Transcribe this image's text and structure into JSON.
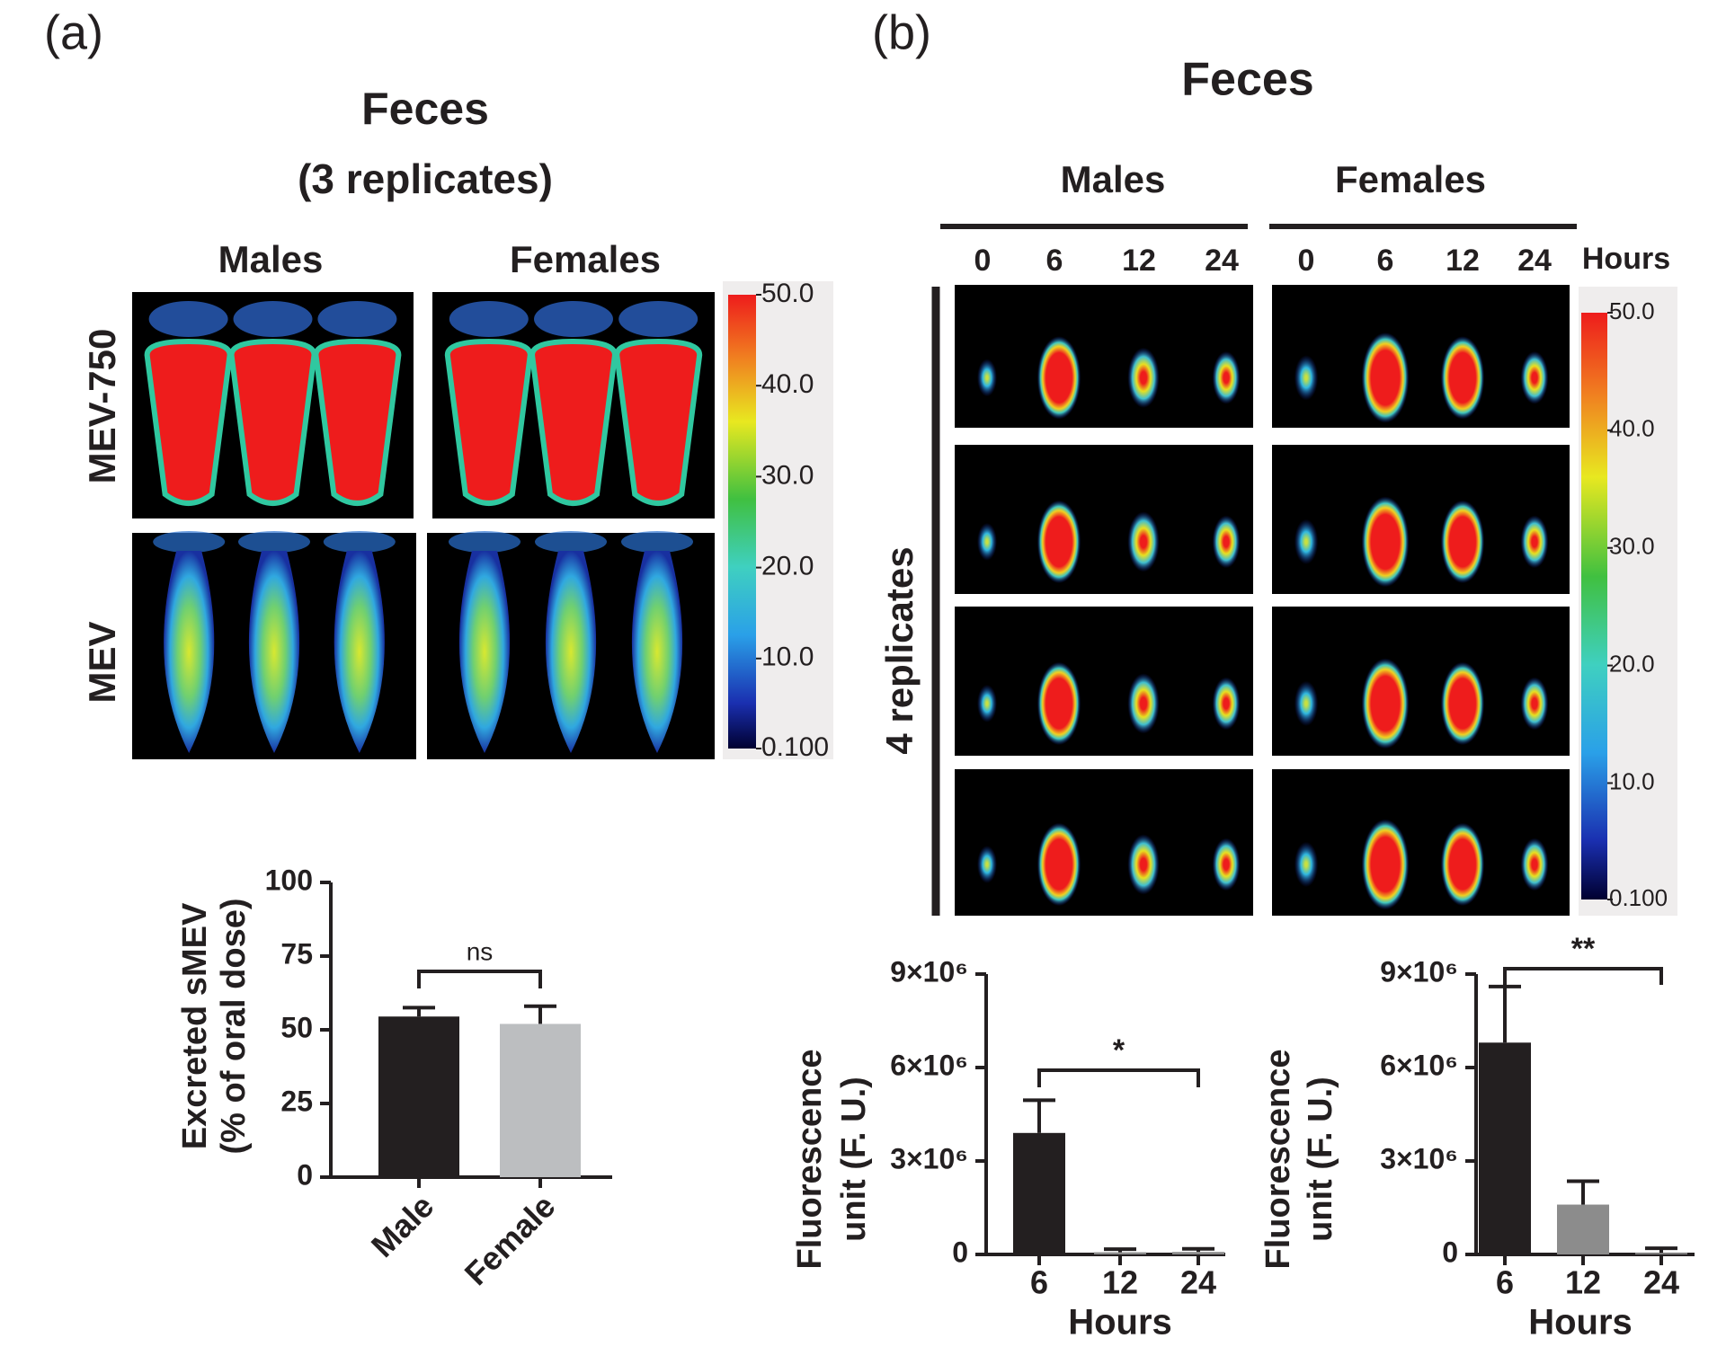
{
  "panels": {
    "a": {
      "label": "(a)",
      "title": "Feces",
      "subtitle": "(3 replicates)",
      "columns": [
        "Males",
        "Females"
      ],
      "rows": [
        "MEV-750",
        "MEV"
      ],
      "colorbar": {
        "range": [
          0.1,
          50
        ],
        "ticks": [
          {
            "value": 50,
            "label": "50.0"
          },
          {
            "value": 40,
            "label": "40.0"
          },
          {
            "value": 30,
            "label": "30.0"
          },
          {
            "value": 20,
            "label": "20.0"
          },
          {
            "value": 10,
            "label": "10.0"
          },
          {
            "value": 0.1,
            "label": "0.100"
          }
        ]
      }
    },
    "b": {
      "label": "(b)",
      "title": "Feces",
      "groups": [
        {
          "name": "Males",
          "hours": [
            "0",
            "6",
            "12",
            "24"
          ]
        },
        {
          "name": "Females",
          "hours": [
            "0",
            "6",
            "12",
            "24"
          ]
        }
      ],
      "hours_label": "Hours",
      "replicates_label": "4 replicates",
      "colorbar": {
        "range": [
          0.1,
          50
        ],
        "ticks": [
          {
            "value": 50,
            "label": "50.0"
          },
          {
            "value": 40,
            "label": "40.0"
          },
          {
            "value": 30,
            "label": "30.0"
          },
          {
            "value": 20,
            "label": "20.0"
          },
          {
            "value": 10,
            "label": "10.0"
          },
          {
            "value": 0.1,
            "label": "0.100"
          }
        ]
      }
    }
  },
  "chart_data": [
    {
      "type": "bar",
      "ylabel": [
        "Excreted sMEV",
        "(% of oral dose)"
      ],
      "categories": [
        "Male",
        "Female"
      ],
      "values": [
        54.5,
        52
      ],
      "errors": [
        3,
        6
      ],
      "colors": [
        "#231f20",
        "#bcbec0"
      ],
      "ylim": [
        0,
        100
      ],
      "yticks": [
        0,
        25,
        50,
        75,
        100
      ],
      "annotation": "ns"
    },
    {
      "type": "bar",
      "ylabel": [
        "Fluorescence",
        "unit (F. U.)"
      ],
      "xlabel": "Hours",
      "categories": [
        "6",
        "12",
        "24"
      ],
      "values": [
        3900000,
        70000,
        80000
      ],
      "errors": [
        1050000,
        100000,
        100000
      ],
      "colors": [
        "#231f20",
        "#8c8c8c",
        "#8c8c8c"
      ],
      "ylim": [
        0,
        9000000
      ],
      "yticks": [
        0,
        {
          "value": 3000000,
          "label": "3×10⁶"
        },
        {
          "value": 6000000,
          "label": "6×10⁶"
        },
        {
          "value": 9000000,
          "label": "9×10⁶"
        }
      ],
      "annotation": "*"
    },
    {
      "type": "bar",
      "ylabel": [
        "Fluorescence",
        "unit (F. U.)"
      ],
      "xlabel": "Hours",
      "categories": [
        "6",
        "12",
        "24"
      ],
      "values": [
        6800000,
        1600000,
        50000
      ],
      "errors": [
        1800000,
        750000,
        150000
      ],
      "colors": [
        "#231f20",
        "#8c8c8c",
        "#8c8c8c"
      ],
      "ylim": [
        0,
        9000000
      ],
      "yticks": [
        0,
        {
          "value": 3000000,
          "label": "3×10⁶"
        },
        {
          "value": 6000000,
          "label": "6×10⁶"
        },
        {
          "value": 9000000,
          "label": "9×10⁶"
        }
      ],
      "annotation": "**"
    }
  ]
}
